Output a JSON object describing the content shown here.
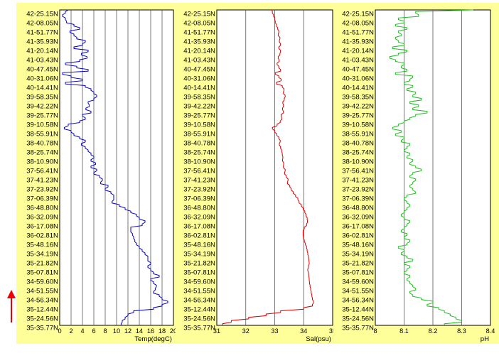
{
  "chart_data": [
    {
      "type": "line",
      "xlabel": "Temp(degC)",
      "xlim": [
        0,
        20
      ],
      "xticks": [
        0,
        2,
        4,
        6,
        8,
        10,
        12,
        14,
        16,
        18,
        20
      ],
      "grid": "vertical lines",
      "color": "#0000cc",
      "series": [
        {
          "values": [
            1.5,
            1.0,
            0.5,
            1.0,
            1.2,
            2.5,
            3.5,
            1.8,
            2.5,
            3.0,
            4.5,
            4.0,
            2.5,
            5.0,
            3.8,
            4.8,
            3.5,
            1.0,
            3.0,
            5.0,
            0.5,
            2.0,
            4.0,
            1.0,
            4.5,
            5.5,
            6.0,
            6.5,
            6.0,
            5.0,
            5.2,
            4.6,
            5.5,
            4.0,
            4.5,
            3.5,
            1.5,
            0.8,
            2.0,
            2.5,
            3.5,
            4.5,
            3.8,
            4.5,
            5.0,
            5.5,
            6.0,
            5.5,
            6.3,
            5.5,
            6.5,
            6.0,
            7.0,
            7.5,
            7.2,
            8.5,
            8.0,
            9.0,
            9.5,
            9.5,
            9.2,
            10.5,
            11.5,
            12.5,
            13.5,
            14.0,
            15.0,
            14.5,
            12.5,
            12.5,
            12.8,
            13.0,
            13.2,
            13.5,
            14.0,
            14.5,
            15.0,
            15.5,
            15.5,
            16.0,
            15.5,
            16.0,
            16.5,
            17.5,
            16.0,
            16.5,
            17.0,
            16.8,
            16.5,
            17.5,
            18.0,
            19.0,
            18.0,
            16.5,
            13.0,
            12.0,
            11.5,
            11.0,
            10.8
          ]
        }
      ]
    },
    {
      "type": "line",
      "xlabel": "Sal(psu)",
      "xlim": [
        31,
        35
      ],
      "xticks": [
        31,
        32,
        33,
        34,
        35
      ],
      "grid": "vertical lines",
      "color": "#dd0000",
      "series": [
        {
          "values": [
            32.9,
            32.92,
            32.96,
            33.0,
            33.02,
            33.06,
            33.1,
            33.14,
            33.12,
            33.18,
            33.16,
            33.2,
            33.14,
            33.2,
            33.18,
            33.12,
            33.15,
            33.08,
            33.14,
            33.2,
            33.02,
            33.14,
            33.22,
            33.06,
            33.26,
            33.32,
            33.3,
            33.36,
            33.33,
            33.28,
            33.3,
            33.27,
            33.3,
            33.22,
            33.24,
            33.19,
            33.08,
            32.92,
            33.0,
            33.07,
            33.14,
            33.19,
            33.16,
            33.2,
            33.24,
            33.26,
            33.28,
            33.27,
            33.31,
            33.3,
            33.36,
            33.34,
            33.4,
            33.46,
            33.44,
            33.52,
            33.57,
            33.64,
            33.72,
            33.8,
            33.84,
            33.92,
            33.98,
            34.04,
            34.08,
            34.12,
            34.13,
            34.1,
            34.02,
            33.98,
            33.98,
            33.99,
            34.02,
            34.06,
            34.1,
            34.12,
            34.14,
            34.16,
            34.18,
            34.19,
            34.16,
            34.14,
            34.16,
            34.18,
            34.19,
            34.2,
            34.22,
            34.24,
            34.26,
            34.28,
            34.3,
            34.34,
            34.3,
            34.0,
            33.2,
            32.7,
            32.1,
            31.5,
            31.2
          ]
        }
      ]
    },
    {
      "type": "line",
      "xlabel": "pH",
      "xlim": [
        8.0,
        8.4
      ],
      "xticks": [
        "8",
        "8.1",
        "8.2",
        "8.3",
        "8.4"
      ],
      "grid": "vertical lines",
      "color": "#22bb22",
      "series": [
        {
          "values": [
            8.34,
            8.14,
            8.15,
            8.08,
            8.1,
            8.07,
            8.11,
            8.08,
            8.09,
            8.07,
            8.08,
            8.1,
            8.06,
            8.11,
            8.08,
            8.05,
            8.07,
            8.1,
            8.09,
            8.11,
            8.07,
            8.13,
            8.12,
            8.1,
            8.13,
            8.11,
            8.14,
            8.13,
            8.16,
            8.12,
            8.15,
            8.13,
            8.18,
            8.14,
            8.12,
            8.1,
            8.08,
            8.06,
            8.09,
            8.07,
            8.1,
            8.09,
            8.12,
            8.11,
            8.1,
            8.12,
            8.11,
            8.13,
            8.12,
            8.14,
            8.16,
            8.13,
            8.12,
            8.14,
            8.13,
            8.12,
            8.13,
            8.14,
            8.11,
            8.1,
            8.11,
            8.12,
            8.11,
            8.1,
            8.09,
            8.1,
            8.12,
            8.11,
            8.1,
            8.09,
            8.11,
            8.1,
            8.12,
            8.11,
            8.08,
            8.1,
            8.09,
            8.11,
            8.13,
            8.1,
            8.12,
            8.11,
            8.1,
            8.12,
            8.11,
            8.12,
            8.13,
            8.14,
            8.12,
            8.13,
            8.16,
            8.2,
            8.18,
            8.22,
            8.24,
            8.26,
            8.28,
            8.3,
            8.24
          ]
        }
      ]
    }
  ],
  "latitudes": [
    "42-25.15N",
    "42-08.05N",
    "41-51.77N",
    "41-35.93N",
    "41-20.14N",
    "41-03.43N",
    "40-47.45N",
    "40-31.06N",
    "40-14.41N",
    "39-58.35N",
    "39-42.22N",
    "39-25.77N",
    "39-10.58N",
    "38-55.91N",
    "38-40.78N",
    "38-25.74N",
    "38-10.90N",
    "37-56.41N",
    "37-41.23N",
    "37-23.92N",
    "37-06.39N",
    "36-48.80N",
    "36-32.09N",
    "36-17.08N",
    "36-02.81N",
    "35-48.16N",
    "35-34.19N",
    "35-21.82N",
    "35-07.81N",
    "34-59.60N",
    "34-51.55N",
    "34-56.34N",
    "35-12.44N",
    "35-24.56N",
    "35-35.77N"
  ],
  "arrow": {
    "direction": "up",
    "color": "#ee0000"
  }
}
